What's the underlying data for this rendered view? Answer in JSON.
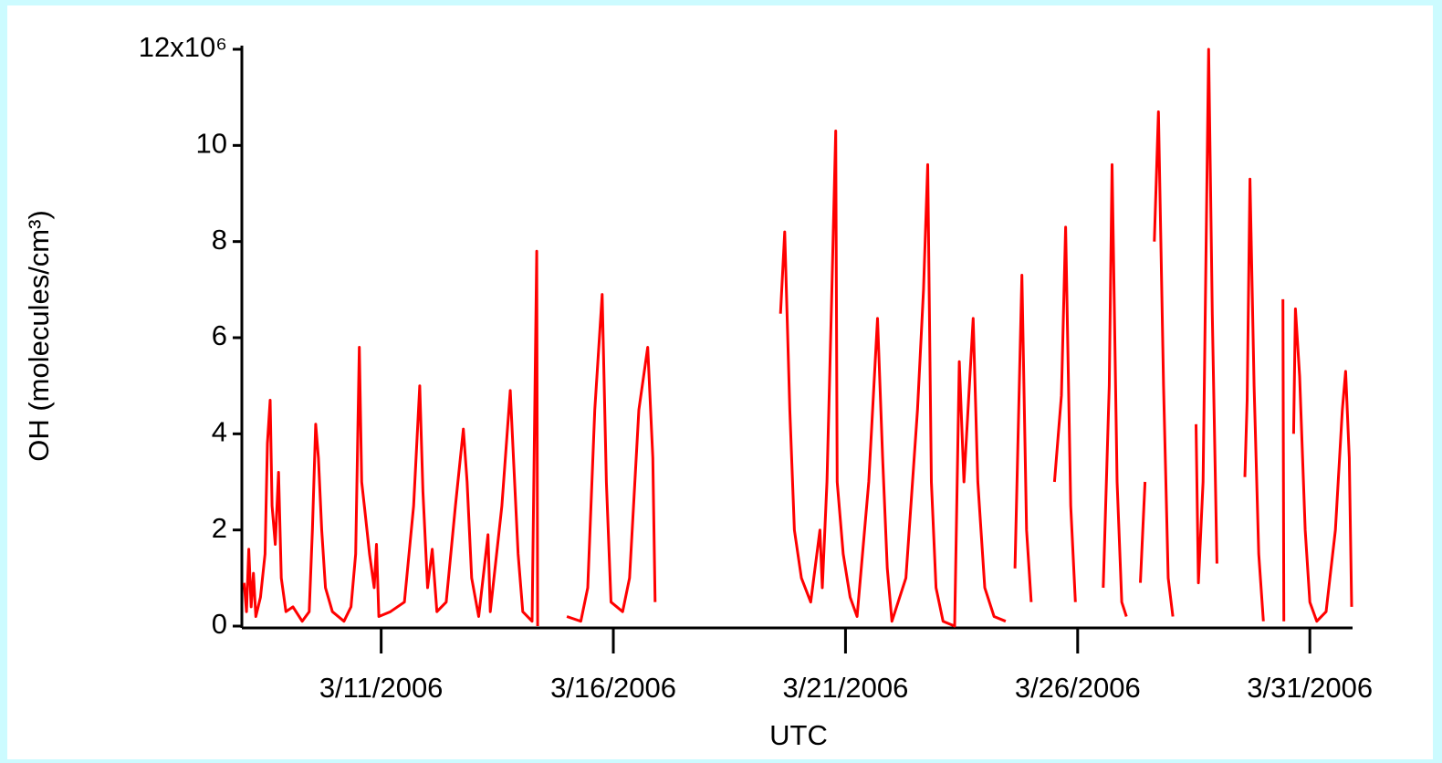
{
  "chart_data": {
    "type": "line",
    "xlabel": "UTC",
    "ylabel": "OH (molecules/cm³)",
    "xlim": [
      8,
      31.92
    ],
    "ylim": [
      0,
      12
    ],
    "xticks": [
      {
        "value": 11,
        "label": "3/11/2006"
      },
      {
        "value": 16,
        "label": "3/16/2006"
      },
      {
        "value": 21,
        "label": "3/21/2006"
      },
      {
        "value": 26,
        "label": "3/26/2006"
      },
      {
        "value": 31,
        "label": "3/31/2006"
      }
    ],
    "yticks": [
      0,
      2,
      4,
      6,
      8,
      10,
      {
        "value": 12,
        "label": "12x10⁶"
      }
    ],
    "series": [
      {
        "name": "OH",
        "color": "#ff0000",
        "x": [
          8.05,
          8.1,
          8.15,
          8.2,
          8.25,
          8.3,
          8.4,
          8.5,
          8.55,
          8.61,
          8.65,
          8.72,
          8.79,
          8.85,
          8.95,
          9.1,
          9.3,
          9.45,
          9.52,
          9.59,
          9.65,
          9.72,
          9.8,
          9.95,
          10.2,
          10.35,
          10.45,
          10.53,
          10.58,
          10.65,
          10.75,
          10.85,
          10.9,
          10.95,
          11.2,
          11.5,
          11.7,
          11.83,
          11.9,
          12.0,
          12.1,
          12.2,
          12.4,
          12.6,
          12.77,
          12.85,
          12.95,
          13.1,
          13.3,
          13.35,
          13.6,
          13.78,
          13.85,
          13.95,
          14.05,
          14.25,
          14.35,
          14.37,
          14.6,
          15.0,
          15.3,
          15.45,
          15.6,
          15.76,
          15.85,
          15.95,
          16.2,
          16.35,
          16.55,
          16.74,
          16.85,
          16.9,
          18.0,
          19.6,
          19.69,
          19.8,
          19.9,
          20.05,
          20.25,
          20.45,
          20.5,
          20.6,
          20.7,
          20.79,
          20.82,
          20.95,
          21.1,
          21.25,
          21.5,
          21.69,
          21.8,
          21.9,
          22.0,
          22.3,
          22.55,
          22.68,
          22.77,
          22.85,
          22.95,
          23.1,
          23.35,
          23.45,
          23.55,
          23.75,
          23.85,
          24.0,
          24.2,
          24.45,
          24.55,
          24.65,
          24.8,
          24.9,
          25.0,
          25.1,
          25.5,
          25.65,
          25.74,
          25.85,
          25.95,
          26.1,
          26.55,
          26.68,
          26.74,
          26.85,
          26.95,
          27.05,
          27.2,
          27.35,
          27.45,
          27.55,
          27.65,
          27.74,
          27.85,
          27.95,
          28.05,
          28.2,
          28.55,
          28.6,
          28.7,
          28.82,
          28.9,
          29.0,
          29.15,
          29.6,
          29.65,
          29.71,
          29.8,
          29.9,
          30.0,
          30.1,
          30.42,
          30.44,
          30.5,
          30.65,
          30.69,
          30.78,
          30.9,
          31.0,
          31.15,
          31.35,
          31.55,
          31.7,
          31.77,
          31.85,
          31.9
        ],
        "values": [
          0.9,
          0.3,
          1.6,
          0.4,
          1.1,
          0.2,
          0.6,
          1.5,
          3.8,
          4.7,
          2.5,
          1.7,
          3.2,
          1.0,
          0.3,
          0.4,
          0.1,
          0.3,
          2.0,
          4.2,
          3.5,
          2.0,
          0.8,
          0.3,
          0.1,
          0.4,
          1.5,
          5.8,
          3.0,
          2.4,
          1.5,
          0.8,
          1.7,
          0.2,
          0.3,
          0.5,
          2.5,
          5.0,
          2.8,
          0.8,
          1.6,
          0.3,
          0.5,
          2.5,
          4.1,
          3.0,
          1.0,
          0.2,
          1.9,
          0.3,
          2.5,
          4.9,
          3.5,
          1.5,
          0.3,
          0.1,
          7.8,
          0.0,
          null,
          0.2,
          0.1,
          0.8,
          4.5,
          6.9,
          3.0,
          0.5,
          0.3,
          1.0,
          4.5,
          5.8,
          3.5,
          0.5,
          null,
          6.5,
          8.2,
          4.5,
          2.0,
          1.0,
          0.5,
          2.0,
          0.8,
          3.0,
          6.7,
          10.3,
          3.0,
          1.5,
          0.6,
          0.2,
          3.0,
          6.4,
          3.5,
          1.2,
          0.1,
          1.0,
          4.5,
          7.0,
          9.6,
          3.0,
          0.8,
          0.1,
          0.0,
          5.5,
          3.0,
          6.4,
          3.0,
          0.8,
          0.2,
          0.1,
          null,
          1.2,
          7.3,
          2.0,
          0.5,
          null,
          3.0,
          4.8,
          8.3,
          2.5,
          0.5,
          null,
          0.8,
          5.0,
          9.6,
          3.0,
          0.5,
          0.2,
          null,
          0.9,
          3.0,
          null,
          8.0,
          10.7,
          5.0,
          1.0,
          0.2,
          null,
          4.2,
          0.9,
          3.0,
          12.0,
          6.5,
          1.3,
          null,
          3.1,
          4.7,
          9.3,
          5.0,
          1.5,
          0.1,
          null,
          6.8,
          0.1,
          null,
          4.0,
          6.6,
          5.2,
          2.0,
          0.5,
          0.1,
          0.3,
          2.0,
          4.5,
          5.3,
          3.5,
          0.4
        ]
      }
    ]
  }
}
